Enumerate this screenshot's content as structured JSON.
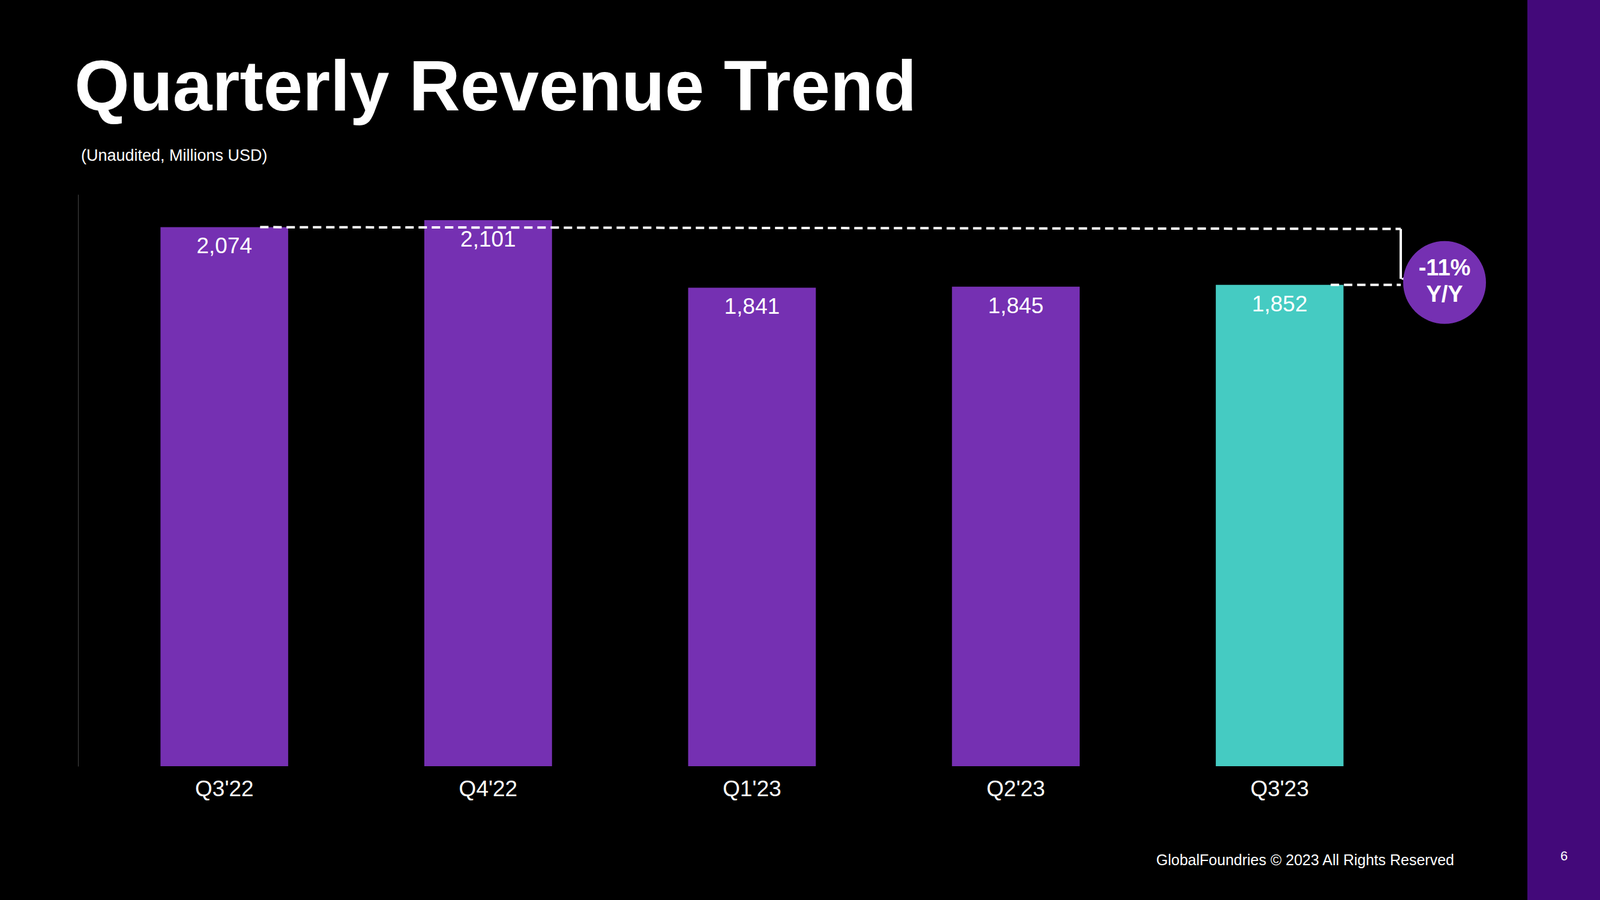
{
  "chart_data": {
    "type": "bar",
    "title": "Quarterly Revenue Trend",
    "subtitle": "(Unaudited, Millions USD)",
    "categories": [
      "Q3'22",
      "Q4'22",
      "Q1'23",
      "Q2'23",
      "Q3'23"
    ],
    "values": [
      2074,
      2101,
      1841,
      1845,
      1852
    ],
    "value_labels": [
      "2,074",
      "2,101",
      "1,841",
      "1,845",
      "1,852"
    ],
    "colors": [
      "#7530b2",
      "#7530b2",
      "#7530b2",
      "#7530b2",
      "#45cbc2"
    ],
    "ylim": [
      0,
      2200
    ],
    "yticks": [],
    "grid": false,
    "data_labels": true,
    "tick_labels": "x",
    "annotation": [
      "-11%",
      "Y/Y"
    ],
    "footer": "GlobalFoundries © 2023 All Rights Reserved",
    "page_number": "6"
  }
}
